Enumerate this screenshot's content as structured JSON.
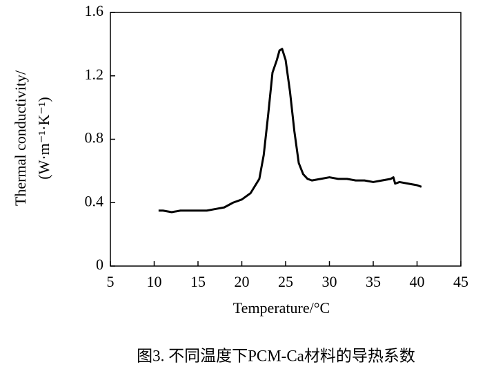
{
  "chart_data": {
    "type": "line",
    "x_label": "Temperature/°C",
    "y_label": [
      "Thermal conductivity/",
      "(W·m⁻¹·K⁻¹)"
    ],
    "caption": "图3. 不同温度下PCM-Ca材料的导热系数",
    "x": [
      10.5,
      11,
      12,
      13,
      14,
      15,
      16,
      17,
      18,
      19,
      20,
      21,
      22,
      22.5,
      23,
      23.5,
      24,
      24.3,
      24.6,
      25,
      25.5,
      26,
      26.5,
      27,
      27.5,
      28,
      29,
      30,
      31,
      32,
      33,
      34,
      35,
      36,
      37,
      37.3,
      37.5,
      38,
      39,
      40,
      40.5
    ],
    "values": [
      0.35,
      0.35,
      0.34,
      0.35,
      0.35,
      0.35,
      0.35,
      0.36,
      0.37,
      0.4,
      0.42,
      0.46,
      0.55,
      0.7,
      0.95,
      1.22,
      1.3,
      1.36,
      1.37,
      1.3,
      1.1,
      0.85,
      0.65,
      0.58,
      0.55,
      0.54,
      0.55,
      0.56,
      0.55,
      0.55,
      0.54,
      0.54,
      0.53,
      0.54,
      0.55,
      0.56,
      0.52,
      0.53,
      0.52,
      0.51,
      0.5
    ],
    "color": "#000000",
    "xlim": [
      5,
      45
    ],
    "xticks": [
      5,
      10,
      15,
      20,
      25,
      30,
      35,
      40,
      45
    ],
    "ylim": [
      0,
      1.6
    ],
    "yticks": [
      0,
      0.4,
      0.8,
      1.2,
      1.6
    ]
  }
}
